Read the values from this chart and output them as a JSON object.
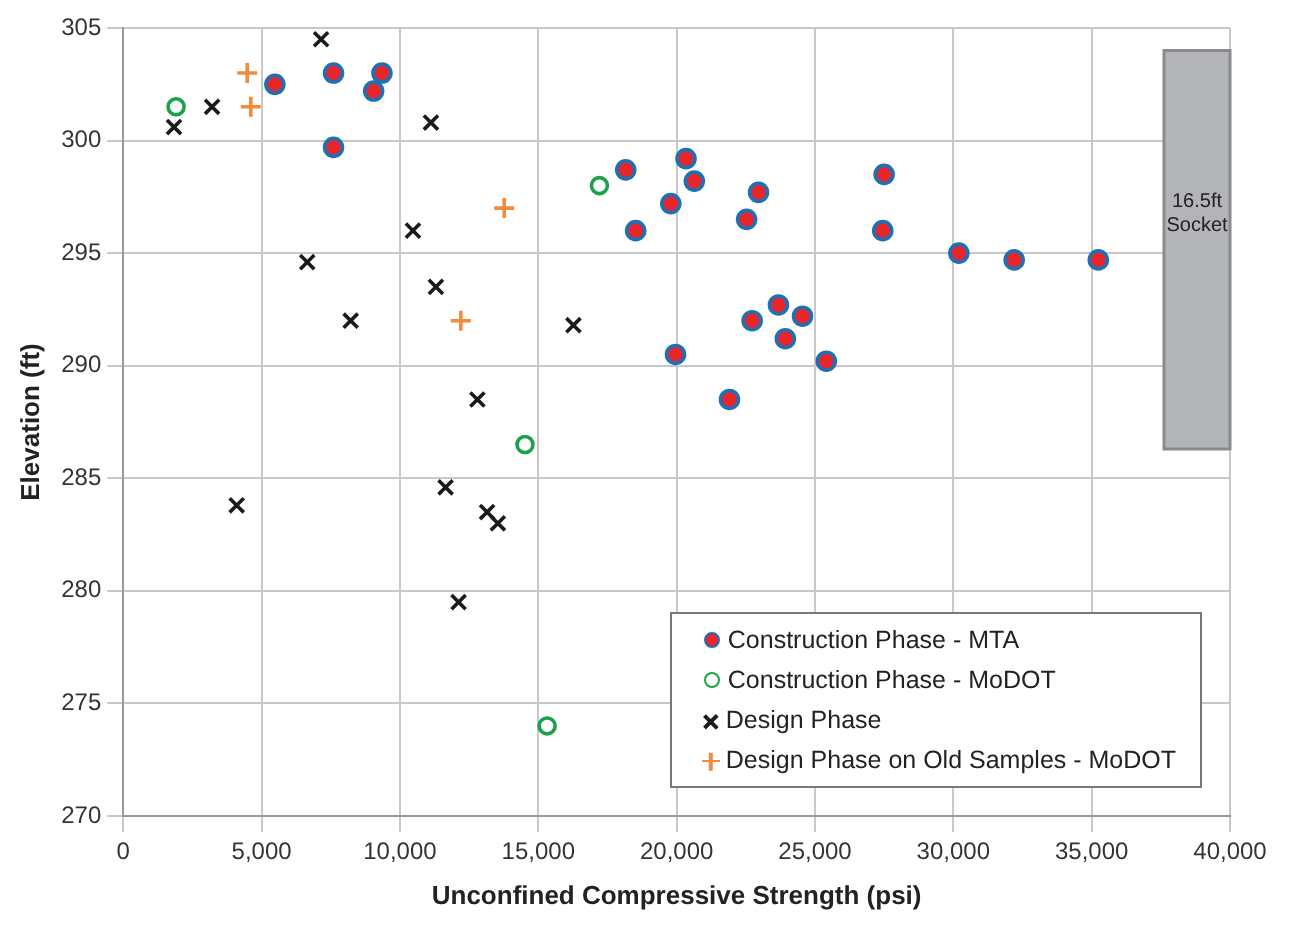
{
  "chart_data": {
    "type": "scatter",
    "xlabel": "Unconfined Compressive Strength (psi)",
    "ylabel": "Elevation (ft)",
    "xlim": [
      0,
      40000
    ],
    "xticks": [
      0,
      {
        "value": 5000,
        "label": "5,000"
      },
      {
        "value": 10000,
        "label": "10,000"
      },
      {
        "value": 15000,
        "label": "15,000"
      },
      {
        "value": 20000,
        "label": "20,000"
      },
      {
        "value": 25000,
        "label": "25,000"
      },
      {
        "value": 30000,
        "label": "30,000"
      },
      {
        "value": 35000,
        "label": "35,000"
      },
      {
        "value": 40000,
        "label": "40,000"
      }
    ],
    "ylim": [
      270,
      305
    ],
    "yticks": [
      270,
      275,
      280,
      285,
      290,
      295,
      300,
      305
    ],
    "grid": true,
    "legend": "bottom right",
    "bands": [
      {
        "axis": "y",
        "from": 286.3,
        "to": 304,
        "label": "16.5ft Socket",
        "color": "#b3b4b8"
      }
    ],
    "series": [
      {
        "name": "Construction Phase - MTA",
        "color": "#e8262a",
        "marker": "circle",
        "x": [
          5480,
          7600,
          9350,
          9050,
          7600,
          18160,
          20340,
          20640,
          19790,
          18520,
          22960,
          22530,
          27500,
          27450,
          30200,
          32200,
          35240,
          23680,
          24550,
          22730,
          23930,
          19960,
          25410,
          21910
        ],
        "values": [
          302.5,
          303,
          303,
          302.2,
          299.7,
          298.7,
          299.2,
          298.2,
          297.2,
          296,
          297.7,
          296.5,
          298.5,
          296,
          295,
          294.7,
          294.7,
          292.7,
          292.2,
          292,
          291.2,
          290.5,
          290.2,
          288.5
        ]
      },
      {
        "name": "Construction Phase - MoDOT",
        "color": "#1aa14a",
        "marker": "open_circle",
        "x": [
          1910,
          17210,
          14520,
          15320
        ],
        "values": [
          301.5,
          298,
          286.5,
          274
        ]
      },
      {
        "name": "Design Phase",
        "color": "#1a1a1a",
        "marker": "x",
        "x": [
          7150,
          3210,
          1835,
          11120,
          10470,
          6650,
          11300,
          8220,
          16270,
          12800,
          4100,
          11650,
          13150,
          13540,
          12120
        ],
        "values": [
          304.5,
          301.5,
          300.6,
          300.8,
          296,
          294.6,
          293.5,
          292,
          291.8,
          288.5,
          283.8,
          284.6,
          283.5,
          283,
          279.5
        ]
      },
      {
        "name": "Design Phase on Old Samples - MoDOT",
        "color": "#f28c3c",
        "marker": "plus",
        "x": [
          4480,
          4610,
          13770,
          12200
        ],
        "values": [
          303,
          301.5,
          297,
          292
        ]
      }
    ]
  }
}
